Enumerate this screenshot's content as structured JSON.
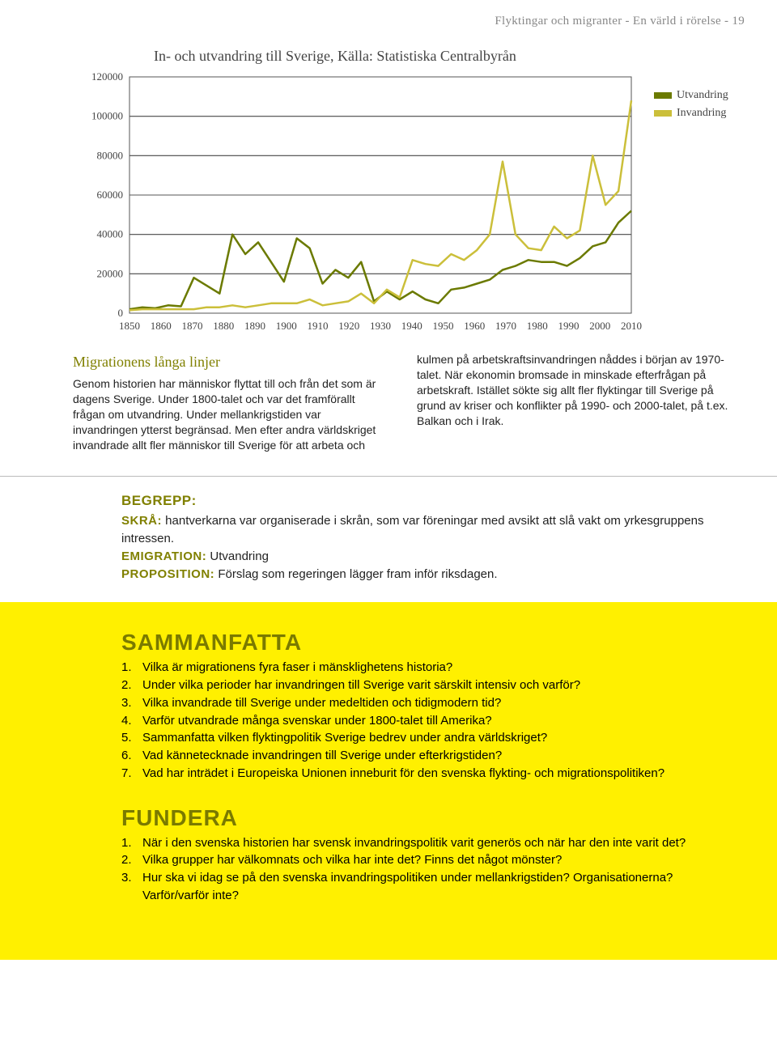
{
  "header": "Flyktingar och migranter - En värld i rörelse - 19",
  "chart": {
    "title": "In- och utvandring till Sverige, Källa: Statistiska Centralbyrån",
    "type": "line",
    "ylim": [
      0,
      120000
    ],
    "ytick_step": 20000,
    "yticks": [
      "0",
      "20000",
      "40000",
      "60000",
      "80000",
      "100000",
      "120000"
    ],
    "xticks": [
      "1850",
      "1860",
      "1870",
      "1880",
      "1890",
      "1900",
      "1910",
      "1920",
      "1930",
      "1940",
      "1950",
      "1960",
      "1970",
      "1980",
      "1990",
      "2000",
      "2010"
    ],
    "background_color": "#ffffff",
    "border_color": "#555555",
    "line_width": 2.5,
    "series": [
      {
        "name": "Utvandring",
        "color": "#6b7a00",
        "values": [
          2000,
          3000,
          2500,
          4000,
          3500,
          18000,
          14000,
          10000,
          40000,
          30000,
          36000,
          26000,
          16000,
          38000,
          33000,
          15000,
          22000,
          18000,
          26000,
          6000,
          11000,
          7000,
          11000,
          7000,
          5000,
          12000,
          13000,
          15000,
          17000,
          22000,
          24000,
          27000,
          26000,
          26000,
          24000,
          28000,
          34000,
          36000,
          46000,
          52000
        ]
      },
      {
        "name": "Invandring",
        "color": "#cbbf3a",
        "values": [
          1500,
          2000,
          2000,
          2000,
          2000,
          2000,
          3000,
          3000,
          4000,
          3000,
          4000,
          5000,
          5000,
          5000,
          7000,
          4000,
          5000,
          6000,
          10000,
          5000,
          12000,
          8000,
          27000,
          25000,
          24000,
          30000,
          27000,
          32000,
          40000,
          77000,
          40000,
          33000,
          32000,
          44000,
          38000,
          42000,
          80000,
          55000,
          62000,
          108000
        ]
      }
    ],
    "legend_labels": {
      "utv": "Utvandring",
      "inv": "Invandring"
    }
  },
  "subheading": "Migrationens långa linjer",
  "para_left": "Genom historien har människor flyttat till och från det som är dagens Sverige. Under 1800-talet och  var det framförallt frågan om utvandring. Under mellankrigstiden var invandringen ytterst begränsad. Men efter andra världskriget invandrade allt fler människor till Sverige för att arbeta och",
  "para_right": "kulmen på arbetskraftsinvandringen nåddes i början av 1970-talet. När ekonomin bromsade in minskade efterfrågan på arbetskraft. Istället sökte sig allt fler flyktingar till Sverige på grund av kriser och konflikter på 1990- och 2000-talet, på t.ex. Balkan och i Irak.",
  "begrepp": {
    "head": "BEGREPP:",
    "skra_t": "SKRÅ:",
    "skra": " hantverkarna var organiserade i skrån, som var föreningar med avsikt att slå vakt om yrkesgruppens intressen.",
    "emig_t": "EMIGRATION:",
    "emig": " Utvandring",
    "prop_t": "PROPOSITION:",
    "prop": " Förslag som regeringen lägger fram inför riksdagen."
  },
  "sammanfatta": {
    "head": "SAMMANFATTA",
    "items": [
      "Vilka är migrationens fyra faser i mänsklighetens historia?",
      "Under vilka perioder har invandringen till Sverige varit särskilt intensiv och varför?",
      "Vilka invandrade till Sverige under medeltiden och tidigmodern tid?",
      "Varför utvandrade många svenskar under 1800-talet till Amerika?",
      "Sammanfatta vilken flyktingpolitik Sverige bedrev under andra världskriget?",
      "Vad kännetecknade invandringen till Sverige under efterkrigstiden?",
      "Vad har inträdet i Europeiska Unionen inneburit för den svenska flykting- och migrationspolitiken?"
    ]
  },
  "fundera": {
    "head": "FUNDERA",
    "items": [
      "När i den svenska historien har svensk invandringspolitik varit generös och när har den inte varit det?",
      "Vilka grupper har välkomnats och vilka har inte det? Finns det något mönster?",
      "Hur ska vi idag se på den svenska invandringspolitiken under mellankrigstiden? Organisationerna? Varför/varför inte?"
    ]
  }
}
